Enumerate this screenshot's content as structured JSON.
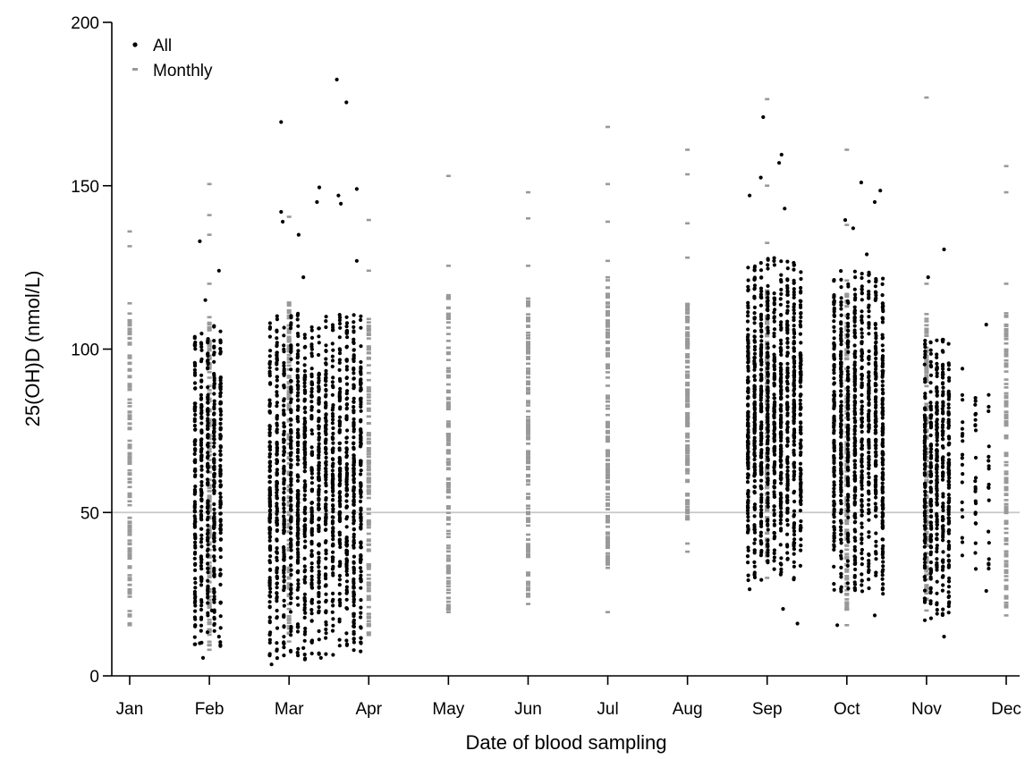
{
  "chart_data": {
    "type": "scatter",
    "xlabel": "Date of blood sampling",
    "ylabel": "25(OH)D (nmol/L)",
    "xlim": [
      0,
      11
    ],
    "ylim": [
      0,
      200
    ],
    "x_ticks": [
      {
        "value": 0,
        "label": "Jan"
      },
      {
        "value": 1,
        "label": "Feb"
      },
      {
        "value": 2,
        "label": "Mar"
      },
      {
        "value": 3,
        "label": "Apr"
      },
      {
        "value": 4,
        "label": "May"
      },
      {
        "value": 5,
        "label": "Jun"
      },
      {
        "value": 6,
        "label": "Jul"
      },
      {
        "value": 7,
        "label": "Aug"
      },
      {
        "value": 8,
        "label": "Sep"
      },
      {
        "value": 9,
        "label": "Oct"
      },
      {
        "value": 10,
        "label": "Nov"
      },
      {
        "value": 11,
        "label": "Dec"
      }
    ],
    "y_ticks": [
      {
        "value": 0,
        "label": "0"
      },
      {
        "value": 50,
        "label": "50"
      },
      {
        "value": 100,
        "label": "100"
      },
      {
        "value": 150,
        "label": "150"
      },
      {
        "value": 200,
        "label": "200"
      }
    ],
    "reference_line": {
      "y": 50,
      "color": "#c8c8c8"
    },
    "legend": {
      "position": "top-left",
      "entries": [
        {
          "label": "All",
          "marker": "dot",
          "color": "#000000"
        },
        {
          "label": "Monthly",
          "marker": "dash",
          "color": "#999999"
        }
      ]
    },
    "series": [
      {
        "name": "All",
        "color": "#000000",
        "points": [
          {
            "x": 0.88,
            "y": 133
          },
          {
            "x": 0.88,
            "y": 10
          },
          {
            "x": 0.92,
            "y": 5.5
          },
          {
            "x": 0.95,
            "y": 115
          },
          {
            "x": 1.12,
            "y": 124
          },
          {
            "x": 1.12,
            "y": 12
          },
          {
            "x": 1.03,
            "y": 20
          },
          {
            "x": 1.78,
            "y": 3.5
          },
          {
            "x": 1.9,
            "y": 142
          },
          {
            "x": 1.92,
            "y": 139
          },
          {
            "x": 1.9,
            "y": 169.5
          },
          {
            "x": 2.12,
            "y": 135
          },
          {
            "x": 2.18,
            "y": 122
          },
          {
            "x": 2.35,
            "y": 145
          },
          {
            "x": 2.38,
            "y": 149.5
          },
          {
            "x": 2.6,
            "y": 182.5
          },
          {
            "x": 2.62,
            "y": 147
          },
          {
            "x": 2.65,
            "y": 144.5
          },
          {
            "x": 2.72,
            "y": 175.5
          },
          {
            "x": 2.85,
            "y": 149
          },
          {
            "x": 2.85,
            "y": 127
          },
          {
            "x": 2.4,
            "y": 5.5
          },
          {
            "x": 2.18,
            "y": 8.5
          },
          {
            "x": 7.78,
            "y": 147
          },
          {
            "x": 7.78,
            "y": 26.5
          },
          {
            "x": 7.92,
            "y": 152.5
          },
          {
            "x": 7.95,
            "y": 171
          },
          {
            "x": 8.15,
            "y": 157
          },
          {
            "x": 8.18,
            "y": 159.5
          },
          {
            "x": 8.22,
            "y": 143
          },
          {
            "x": 8.2,
            "y": 20.5
          },
          {
            "x": 8.38,
            "y": 16
          },
          {
            "x": 8.88,
            "y": 15.5
          },
          {
            "x": 8.98,
            "y": 139.5
          },
          {
            "x": 9.08,
            "y": 137
          },
          {
            "x": 9.18,
            "y": 151
          },
          {
            "x": 9.25,
            "y": 129
          },
          {
            "x": 9.35,
            "y": 145
          },
          {
            "x": 9.42,
            "y": 148.5
          },
          {
            "x": 9.35,
            "y": 18.5
          },
          {
            "x": 10.02,
            "y": 122
          },
          {
            "x": 10.22,
            "y": 12
          },
          {
            "x": 10.22,
            "y": 130.5
          },
          {
            "x": 10.45,
            "y": 94
          },
          {
            "x": 10.75,
            "y": 107.5
          },
          {
            "x": 10.75,
            "y": 26
          },
          {
            "x": 10.78,
            "y": 86
          }
        ]
      },
      {
        "name": "Monthly",
        "color": "#999999",
        "points": [
          {
            "x": 0,
            "y": 136
          },
          {
            "x": 0,
            "y": 131.5
          },
          {
            "x": 0,
            "y": 114
          },
          {
            "x": 0,
            "y": 15.5
          },
          {
            "x": 1,
            "y": 150.5
          },
          {
            "x": 1,
            "y": 141
          },
          {
            "x": 1,
            "y": 135
          },
          {
            "x": 1,
            "y": 120
          },
          {
            "x": 1,
            "y": 8
          },
          {
            "x": 2,
            "y": 140.5
          },
          {
            "x": 2,
            "y": 10.5
          },
          {
            "x": 3,
            "y": 139.5
          },
          {
            "x": 3,
            "y": 124
          },
          {
            "x": 3,
            "y": 12.5
          },
          {
            "x": 4,
            "y": 153
          },
          {
            "x": 4,
            "y": 125.5
          },
          {
            "x": 4,
            "y": 19.5
          },
          {
            "x": 5,
            "y": 148
          },
          {
            "x": 5,
            "y": 140
          },
          {
            "x": 5,
            "y": 125.5
          },
          {
            "x": 5,
            "y": 22
          },
          {
            "x": 6,
            "y": 168
          },
          {
            "x": 6,
            "y": 150.5
          },
          {
            "x": 6,
            "y": 139
          },
          {
            "x": 6,
            "y": 127
          },
          {
            "x": 6,
            "y": 19.5
          },
          {
            "x": 7,
            "y": 161
          },
          {
            "x": 7,
            "y": 153.5
          },
          {
            "x": 7,
            "y": 138.5
          },
          {
            "x": 7,
            "y": 128
          },
          {
            "x": 7,
            "y": 40.5
          },
          {
            "x": 7,
            "y": 38
          },
          {
            "x": 8,
            "y": 176.5
          },
          {
            "x": 8,
            "y": 150
          },
          {
            "x": 8,
            "y": 132.5
          },
          {
            "x": 8,
            "y": 30
          },
          {
            "x": 9,
            "y": 161
          },
          {
            "x": 9,
            "y": 138
          },
          {
            "x": 9,
            "y": 121
          },
          {
            "x": 9,
            "y": 15.5
          },
          {
            "x": 10,
            "y": 177
          },
          {
            "x": 10,
            "y": 120
          },
          {
            "x": 10,
            "y": 20
          },
          {
            "x": 11,
            "y": 156
          },
          {
            "x": 11,
            "y": 148
          },
          {
            "x": 11,
            "y": 120
          },
          {
            "x": 11,
            "y": 110
          },
          {
            "x": 11,
            "y": 18.5
          }
        ]
      }
    ],
    "clusters": [
      {
        "series": "All",
        "x_from": 0.82,
        "x_to": 1.14,
        "columns": 5,
        "y_low": 12,
        "y_high": 105,
        "count": 520
      },
      {
        "series": "All",
        "x_from": 1.76,
        "x_to": 2.9,
        "columns": 14,
        "y_low": 8,
        "y_high": 108,
        "count": 1600
      },
      {
        "series": "All",
        "x_from": 7.76,
        "x_to": 8.42,
        "columns": 9,
        "y_low": 32,
        "y_high": 125,
        "count": 1100
      },
      {
        "series": "All",
        "x_from": 8.84,
        "x_to": 9.45,
        "columns": 8,
        "y_low": 28,
        "y_high": 122,
        "count": 950
      },
      {
        "series": "All",
        "x_from": 9.98,
        "x_to": 10.28,
        "columns": 5,
        "y_low": 20,
        "y_high": 100,
        "count": 520
      },
      {
        "series": "All",
        "x_from": 10.45,
        "x_to": 10.78,
        "columns": 3,
        "y_low": 30,
        "y_high": 85,
        "count": 60
      },
      {
        "series": "Monthly",
        "x_from": 0,
        "x_to": 0,
        "columns": 1,
        "y_low": 16,
        "y_high": 111,
        "count": 130
      },
      {
        "series": "Monthly",
        "x_from": 1,
        "x_to": 1,
        "columns": 1,
        "y_low": 9,
        "y_high": 111,
        "count": 130
      },
      {
        "series": "Monthly",
        "x_from": 2,
        "x_to": 2,
        "columns": 1,
        "y_low": 12,
        "y_high": 116,
        "count": 130
      },
      {
        "series": "Monthly",
        "x_from": 3,
        "x_to": 3,
        "columns": 1,
        "y_low": 13,
        "y_high": 110,
        "count": 130
      },
      {
        "series": "Monthly",
        "x_from": 4,
        "x_to": 4,
        "columns": 1,
        "y_low": 20,
        "y_high": 117,
        "count": 130
      },
      {
        "series": "Monthly",
        "x_from": 5,
        "x_to": 5,
        "columns": 1,
        "y_low": 24,
        "y_high": 117,
        "count": 130
      },
      {
        "series": "Monthly",
        "x_from": 6,
        "x_to": 6,
        "columns": 1,
        "y_low": 33,
        "y_high": 122,
        "count": 130
      },
      {
        "series": "Monthly",
        "x_from": 7,
        "x_to": 7,
        "columns": 1,
        "y_low": 47,
        "y_high": 114,
        "count": 130
      },
      {
        "series": "Monthly",
        "x_from": 8,
        "x_to": 8,
        "columns": 1,
        "y_low": 35,
        "y_high": 118,
        "count": 130
      },
      {
        "series": "Monthly",
        "x_from": 9,
        "x_to": 9,
        "columns": 1,
        "y_low": 20,
        "y_high": 118,
        "count": 130
      },
      {
        "series": "Monthly",
        "x_from": 10,
        "x_to": 10,
        "columns": 1,
        "y_low": 22,
        "y_high": 112,
        "count": 130
      },
      {
        "series": "Monthly",
        "x_from": 11,
        "x_to": 11,
        "columns": 1,
        "y_low": 20,
        "y_high": 111,
        "count": 130
      }
    ]
  }
}
